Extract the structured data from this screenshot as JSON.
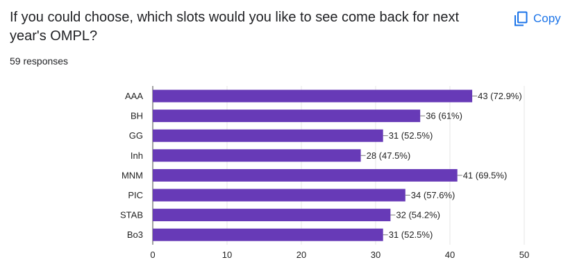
{
  "question": {
    "title": "If you could choose, which slots would you like to see come back for next year's OMPL?",
    "responses": "59 responses"
  },
  "toolbar": {
    "copy_label": "Copy",
    "copy_icon": "copy-icon"
  },
  "colors": {
    "bar": "#673ab7",
    "accent": "#1a73e8"
  },
  "chart_data": {
    "type": "bar",
    "orientation": "horizontal",
    "categories": [
      "AAA",
      "BH",
      "GG",
      "Inh",
      "MNM",
      "PIC",
      "STAB",
      "Bo3"
    ],
    "values": [
      43,
      36,
      31,
      28,
      41,
      34,
      32,
      31
    ],
    "data_labels": [
      "43 (72.9%)",
      "36 (61%)",
      "31 (52.5%)",
      "28 (47.5%)",
      "41 (69.5%)",
      "34 (57.6%)",
      "32 (54.2%)",
      "31 (52.5%)"
    ],
    "xlim": [
      0,
      50
    ],
    "xticks": [
      0,
      10,
      20,
      30,
      40,
      50
    ],
    "grid": true
  }
}
